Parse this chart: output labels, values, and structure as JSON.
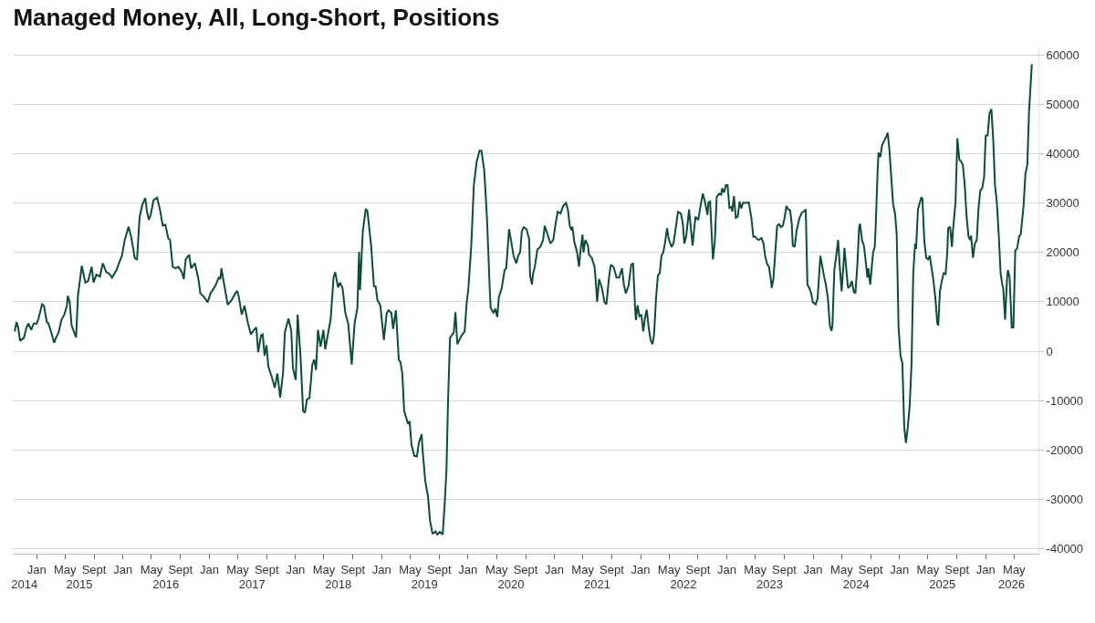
{
  "chart_data": {
    "type": "line",
    "title": "Managed Money, All, Long-Short, Positions",
    "x": [
      "2014-09-30",
      "2014-10-08",
      "2014-10-15",
      "2014-10-23",
      "2014-11-08",
      "2014-11-19",
      "2014-11-27",
      "2014-12-09",
      "2014-12-20",
      "2015-01-01",
      "2015-01-09",
      "2015-01-24",
      "2015-02-01",
      "2015-02-13",
      "2015-02-20",
      "2015-03-04",
      "2015-03-16",
      "2015-03-24",
      "2015-04-04",
      "2015-04-16",
      "2015-04-28",
      "2015-05-09",
      "2015-05-13",
      "2015-05-21",
      "2015-05-29",
      "2015-06-17",
      "2015-06-25",
      "2015-07-07",
      "2015-07-11",
      "2015-07-26",
      "2015-08-07",
      "2015-08-22",
      "2015-08-30",
      "2015-09-11",
      "2015-09-26",
      "2015-10-08",
      "2015-10-23",
      "2015-11-04",
      "2015-11-16",
      "2015-12-05",
      "2015-12-17",
      "2015-12-28",
      "2016-01-09",
      "2016-01-25",
      "2016-02-05",
      "2016-02-21",
      "2016-03-01",
      "2016-03-12",
      "2016-03-24",
      "2016-04-05",
      "2016-04-12",
      "2016-04-20",
      "2016-04-28",
      "2016-05-10",
      "2016-05-25",
      "2016-06-06",
      "2016-06-18",
      "2016-06-29",
      "2016-07-11",
      "2016-07-19",
      "2016-07-30",
      "2016-08-11",
      "2016-08-23",
      "2016-09-07",
      "2016-09-15",
      "2016-09-23",
      "2016-10-08",
      "2016-10-16",
      "2016-11-01",
      "2016-11-16",
      "2016-11-24",
      "2016-12-09",
      "2016-12-25",
      "2017-01-06",
      "2017-01-25",
      "2017-02-10",
      "2017-02-17",
      "2017-02-21",
      "2017-03-05",
      "2017-03-20",
      "2017-04-05",
      "2017-04-21",
      "2017-04-29",
      "2017-05-06",
      "2017-05-18",
      "2017-05-30",
      "2017-06-14",
      "2017-06-26",
      "2017-07-07",
      "2017-07-19",
      "2017-07-27",
      "2017-08-08",
      "2017-08-15",
      "2017-08-23",
      "2017-08-31",
      "2017-09-08",
      "2017-09-23",
      "2017-10-05",
      "2017-10-16",
      "2017-10-28",
      "2017-11-09",
      "2017-11-17",
      "2017-12-02",
      "2017-12-14",
      "2017-12-21",
      "2018-01-02",
      "2018-01-10",
      "2018-01-22",
      "2018-02-02",
      "2018-02-10",
      "2018-02-18",
      "2018-03-01",
      "2018-03-13",
      "2018-03-21",
      "2018-03-29",
      "2018-04-06",
      "2018-04-17",
      "2018-04-29",
      "2018-05-07",
      "2018-05-18",
      "2018-05-30",
      "2018-06-11",
      "2018-06-18",
      "2018-06-30",
      "2018-07-08",
      "2018-07-19",
      "2018-07-31",
      "2018-08-12",
      "2018-08-27",
      "2018-09-08",
      "2018-09-20",
      "2018-09-27",
      "2018-10-01",
      "2018-10-13",
      "2018-10-25",
      "2018-11-01",
      "2018-11-17",
      "2018-11-29",
      "2018-12-06",
      "2018-12-14",
      "2018-12-26",
      "2019-01-10",
      "2019-01-22",
      "2019-01-30",
      "2019-02-11",
      "2019-02-18",
      "2019-03-02",
      "2019-03-14",
      "2019-03-21",
      "2019-03-29",
      "2019-04-06",
      "2019-04-22",
      "2019-04-29",
      "2019-05-07",
      "2019-05-19",
      "2019-05-30",
      "2019-06-07",
      "2019-06-19",
      "2019-06-23",
      "2019-07-04",
      "2019-07-16",
      "2019-07-24",
      "2019-08-04",
      "2019-08-16",
      "2019-08-24",
      "2019-09-04",
      "2019-09-16",
      "2019-09-24",
      "2019-10-02",
      "2019-10-09",
      "2019-10-17",
      "2019-11-02",
      "2019-11-09",
      "2019-11-17",
      "2019-12-03",
      "2019-12-18",
      "2019-12-26",
      "2020-01-03",
      "2020-01-15",
      "2020-01-26",
      "2020-02-07",
      "2020-02-19",
      "2020-02-27",
      "2020-03-10",
      "2020-03-22",
      "2020-04-02",
      "2020-04-06",
      "2020-04-18",
      "2020-04-26",
      "2020-05-04",
      "2020-05-11",
      "2020-05-23",
      "2020-06-04",
      "2020-06-11",
      "2020-06-23",
      "2020-07-01",
      "2020-07-12",
      "2020-07-24",
      "2020-08-01",
      "2020-08-09",
      "2020-08-16",
      "2020-08-24",
      "2020-09-05",
      "2020-09-16",
      "2020-09-20",
      "2020-09-28",
      "2020-10-02",
      "2020-10-10",
      "2020-10-21",
      "2020-11-02",
      "2020-11-14",
      "2020-11-21",
      "2020-12-03",
      "2020-12-15",
      "2020-12-27",
      "2021-01-07",
      "2021-01-15",
      "2021-01-27",
      "2021-02-07",
      "2021-02-19",
      "2021-02-27",
      "2021-03-07",
      "2021-03-14",
      "2021-03-18",
      "2021-03-26",
      "2021-04-07",
      "2021-04-15",
      "2021-04-22",
      "2021-04-30",
      "2021-05-04",
      "2021-05-12",
      "2021-05-23",
      "2021-05-27",
      "2021-06-08",
      "2021-06-20",
      "2021-06-27",
      "2021-07-01",
      "2021-07-09",
      "2021-07-21",
      "2021-08-01",
      "2021-08-09",
      "2021-08-21",
      "2021-08-28",
      "2021-09-09",
      "2021-09-21",
      "2021-10-02",
      "2021-10-14",
      "2021-10-22",
      "2021-10-30",
      "2021-11-11",
      "2021-11-22",
      "2021-11-30",
      "2021-12-08",
      "2021-12-12",
      "2021-12-19",
      "2021-12-27",
      "2022-01-04",
      "2022-01-12",
      "2022-01-19",
      "2022-01-27",
      "2022-02-04",
      "2022-02-12",
      "2022-02-20",
      "2022-02-27",
      "2022-03-07",
      "2022-03-15",
      "2022-03-23",
      "2022-03-30",
      "2022-04-07",
      "2022-04-15",
      "2022-04-23",
      "2022-04-30",
      "2022-05-12",
      "2022-05-20",
      "2022-05-31",
      "2022-06-08",
      "2022-06-20",
      "2022-06-28",
      "2022-07-05",
      "2022-07-13",
      "2022-07-25",
      "2022-08-02",
      "2022-08-09",
      "2022-08-21",
      "2022-09-02",
      "2022-09-09",
      "2022-09-21",
      "2022-09-29",
      "2022-10-11",
      "2022-10-15",
      "2022-10-22",
      "2022-11-03",
      "2022-11-11",
      "2022-11-19",
      "2022-11-30",
      "2022-12-08",
      "2022-12-12",
      "2022-12-20",
      "2022-12-28",
      "2023-01-04",
      "2023-01-12",
      "2023-01-20",
      "2023-01-24",
      "2023-01-31",
      "2023-02-08",
      "2023-02-16",
      "2023-02-24",
      "2023-03-03",
      "2023-03-11",
      "2023-03-23",
      "2023-04-04",
      "2023-04-15",
      "2023-04-23",
      "2023-05-01",
      "2023-05-09",
      "2023-05-16",
      "2023-05-28",
      "2023-06-05",
      "2023-06-12",
      "2023-06-20",
      "2023-06-28",
      "2023-07-06",
      "2023-07-10",
      "2023-07-17",
      "2023-07-25",
      "2023-08-02",
      "2023-08-10",
      "2023-08-18",
      "2023-08-26",
      "2023-09-02",
      "2023-09-10",
      "2023-09-18",
      "2023-09-26",
      "2023-10-03",
      "2023-10-07",
      "2023-10-15",
      "2023-10-23",
      "2023-11-04",
      "2023-11-15",
      "2023-11-23",
      "2023-12-01",
      "2023-12-08",
      "2023-12-16",
      "2023-12-24",
      "2023-12-31",
      "2024-01-12",
      "2024-01-20",
      "2024-02-01",
      "2024-02-09",
      "2024-02-16",
      "2024-02-24",
      "2024-03-04",
      "2024-03-12",
      "2024-03-19",
      "2024-03-23",
      "2024-03-31",
      "2024-04-08",
      "2024-04-16",
      "2024-04-23",
      "2024-05-01",
      "2024-05-09",
      "2024-05-13",
      "2024-05-21",
      "2024-05-28",
      "2024-06-05",
      "2024-06-13",
      "2024-06-21",
      "2024-06-28",
      "2024-07-06",
      "2024-07-14",
      "2024-07-18",
      "2024-07-26",
      "2024-08-03",
      "2024-08-10",
      "2024-08-18",
      "2024-08-22",
      "2024-08-30",
      "2024-09-11",
      "2024-09-18",
      "2024-09-22",
      "2024-09-30",
      "2024-10-04",
      "2024-10-12",
      "2024-10-19",
      "2024-10-27",
      "2024-11-04",
      "2024-11-12",
      "2024-11-19",
      "2024-11-27",
      "2024-12-05",
      "2024-12-13",
      "2024-12-20",
      "2024-12-28",
      "2025-01-05",
      "2025-01-13",
      "2025-01-21",
      "2025-01-28",
      "2025-02-05",
      "2025-02-13",
      "2025-02-21",
      "2025-02-28",
      "2025-03-08",
      "2025-03-12",
      "2025-03-20",
      "2025-03-28",
      "2025-04-04",
      "2025-04-08",
      "2025-04-16",
      "2025-04-24",
      "2025-05-02",
      "2025-05-09",
      "2025-05-17",
      "2025-05-25",
      "2025-06-02",
      "2025-06-10",
      "2025-06-14",
      "2025-06-21",
      "2025-06-29",
      "2025-07-07",
      "2025-07-15",
      "2025-07-22",
      "2025-07-26",
      "2025-08-03",
      "2025-08-11",
      "2025-08-15",
      "2025-08-26",
      "2025-09-03",
      "2025-09-11",
      "2025-09-19",
      "2025-09-26",
      "2025-10-04",
      "2025-10-12",
      "2025-10-20",
      "2025-10-27",
      "2025-10-31",
      "2025-11-08",
      "2025-11-16",
      "2025-11-24",
      "2025-12-01",
      "2025-12-09",
      "2025-12-17",
      "2025-12-25",
      "2026-01-01",
      "2026-01-09",
      "2026-01-17",
      "2026-01-25",
      "2026-02-02",
      "2026-02-09",
      "2026-02-17",
      "2026-02-25",
      "2026-03-05",
      "2026-03-12",
      "2026-03-16",
      "2026-03-24",
      "2026-04-01",
      "2026-04-05",
      "2026-04-12",
      "2026-04-21",
      "2026-04-28",
      "2026-05-06",
      "2026-05-14",
      "2026-05-22",
      "2026-05-29",
      "2026-06-10",
      "2026-06-18",
      "2026-06-26",
      "2026-07-03",
      "2026-07-15"
    ],
    "series": [
      {
        "color": "#0b4d3a",
        "values": [
          4000,
          5900,
          4800,
          2100,
          2700,
          4800,
          5600,
          4300,
          5600,
          5600,
          6600,
          9500,
          9200,
          5900,
          5600,
          3800,
          1700,
          2700,
          3800,
          6300,
          7400,
          9200,
          11200,
          9900,
          5200,
          2800,
          11300,
          15700,
          17300,
          13900,
          14200,
          17100,
          13900,
          15500,
          15100,
          17800,
          16000,
          15700,
          14900,
          16400,
          18000,
          19300,
          22500,
          25200,
          23200,
          18800,
          18600,
          27200,
          29700,
          31000,
          28300,
          26600,
          27600,
          30600,
          31100,
          28700,
          25400,
          25600,
          22900,
          22500,
          17100,
          16800,
          17100,
          16000,
          14600,
          18600,
          19500,
          16800,
          17800,
          14600,
          11700,
          11000,
          9900,
          11700,
          13100,
          14900,
          14600,
          16800,
          13500,
          9400,
          10300,
          11700,
          12200,
          11000,
          7400,
          9200,
          5600,
          3400,
          4200,
          4800,
          -200,
          3200,
          3400,
          -900,
          1200,
          -3100,
          -5300,
          -7400,
          -4500,
          -9400,
          -4500,
          3800,
          6600,
          4100,
          -3500,
          -5800,
          7400,
          -900,
          -12100,
          -12500,
          -9800,
          -9500,
          -2700,
          -1700,
          -3800,
          4300,
          900,
          4300,
          400,
          3400,
          6600,
          14900,
          16000,
          12900,
          13900,
          12800,
          7700,
          5600,
          -2700,
          5600,
          8800,
          20100,
          12400,
          24300,
          28700,
          28500,
          21400,
          13100,
          13100,
          10300,
          9300,
          2300,
          7700,
          8300,
          7700,
          4500,
          8300,
          -1700,
          -2200,
          -4500,
          -12100,
          -14700,
          -14200,
          -19000,
          -21200,
          -21300,
          -18600,
          -16800,
          -20100,
          -26200,
          -29500,
          -34200,
          -37000,
          -36500,
          -37100,
          -36600,
          -37100,
          -31300,
          -24000,
          -9600,
          2700,
          3800,
          7900,
          1400,
          3000,
          4000,
          9500,
          12800,
          21400,
          33700,
          38400,
          40600,
          40600,
          36600,
          26500,
          12800,
          8800,
          7700,
          8600,
          6900,
          11000,
          12800,
          16400,
          16800,
          24700,
          22500,
          19300,
          17800,
          19400,
          20000,
          24300,
          25100,
          24700,
          22700,
          15300,
          13500,
          15500,
          17100,
          20600,
          21100,
          22500,
          25400,
          23600,
          21800,
          22500,
          26100,
          28200,
          27900,
          29400,
          30000,
          28700,
          25400,
          24500,
          25200,
          22200,
          20000,
          17100,
          20600,
          23600,
          20000,
          22500,
          21400,
          19600,
          18900,
          17100,
          12800,
          10000,
          14600,
          12800,
          9900,
          9500,
          15300,
          17500,
          17000,
          14900,
          14900,
          16800,
          13500,
          11700,
          13300,
          17500,
          17800,
          9200,
          6300,
          9300,
          7100,
          7400,
          4000,
          6600,
          8400,
          4800,
          2300,
          1400,
          3400,
          10600,
          15300,
          15800,
          19300,
          20000,
          22200,
          24900,
          22700,
          21100,
          21800,
          25400,
          28200,
          27900,
          26100,
          21800,
          23300,
          28700,
          24700,
          21400,
          27200,
          26600,
          28700,
          31900,
          30500,
          27600,
          30100,
          30300,
          18600,
          22200,
          31200,
          31900,
          31700,
          33000,
          32100,
          33600,
          33600,
          29000,
          29200,
          28300,
          31400,
          27000,
          27200,
          30300,
          28900,
          30100,
          30000,
          30100,
          26900,
          23200,
          23200,
          22700,
          22500,
          22900,
          21800,
          19300,
          17700,
          17100,
          14600,
          12800,
          14600,
          20000,
          25400,
          25700,
          25100,
          25400,
          26900,
          29400,
          28700,
          28500,
          25700,
          21400,
          21100,
          24300,
          26900,
          28100,
          28300,
          28700,
          13500,
          12800,
          11700,
          9900,
          9500,
          10600,
          19300,
          17100,
          15300,
          13500,
          10600,
          5200,
          4100,
          5200,
          16400,
          19300,
          22500,
          17100,
          12100,
          17800,
          20900,
          16400,
          12800,
          13100,
          14200,
          12100,
          11700,
          17100,
          25100,
          25800,
          22500,
          21400,
          18600,
          14900,
          16800,
          13500,
          20000,
          21100,
          25100,
          36200,
          40200,
          39300,
          41700,
          42500,
          43200,
          44200,
          40900,
          35200,
          29700,
          27900,
          23600,
          4800,
          -900,
          -2400,
          -15400,
          -18600,
          -15400,
          -11000,
          -2400,
          15700,
          21800,
          20700,
          28700,
          30100,
          31200,
          30800,
          22200,
          18900,
          18600,
          19300,
          16800,
          14200,
          10600,
          5600,
          5200,
          12100,
          14200,
          15800,
          15600,
          20000,
          24900,
          25200,
          21100,
          24300,
          30100,
          43100,
          38800,
          38400,
          37700,
          33700,
          27200,
          23200,
          22500,
          23400,
          18900,
          21800,
          22500,
          28700,
          32600,
          33000,
          35200,
          43700,
          43700,
          48200,
          49000,
          42400,
          33700,
          30100,
          23600,
          15700,
          13500,
          12800,
          6400,
          14600,
          16400,
          14900,
          4800,
          4800,
          20400,
          20800,
          23200,
          23600,
          29400,
          35900,
          37700,
          48200,
          58100
        ]
      }
    ],
    "xlim": [
      "2014-09-22",
      "2026-08-12"
    ],
    "xticks": [
      {
        "value": "2015-01-01",
        "label": "Jan"
      },
      {
        "value": "2015-05-01",
        "label": "May"
      },
      {
        "value": "2015-09-01",
        "label": "Sept"
      },
      {
        "value": "2016-01-01",
        "label": "Jan"
      },
      {
        "value": "2016-05-01",
        "label": "May"
      },
      {
        "value": "2016-09-01",
        "label": "Sept"
      },
      {
        "value": "2017-01-01",
        "label": "Jan"
      },
      {
        "value": "2017-05-01",
        "label": "May"
      },
      {
        "value": "2017-09-01",
        "label": "Sept"
      },
      {
        "value": "2018-01-01",
        "label": "Jan"
      },
      {
        "value": "2018-05-01",
        "label": "May"
      },
      {
        "value": "2018-09-01",
        "label": "Sept"
      },
      {
        "value": "2019-01-01",
        "label": "Jan"
      },
      {
        "value": "2019-05-01",
        "label": "May"
      },
      {
        "value": "2019-09-01",
        "label": "Sept"
      },
      {
        "value": "2020-01-01",
        "label": "Jan"
      },
      {
        "value": "2020-05-01",
        "label": "May"
      },
      {
        "value": "2020-09-01",
        "label": "Sept"
      },
      {
        "value": "2021-01-01",
        "label": "Jan"
      },
      {
        "value": "2021-05-01",
        "label": "May"
      },
      {
        "value": "2021-09-01",
        "label": "Sept"
      },
      {
        "value": "2022-01-01",
        "label": "Jan"
      },
      {
        "value": "2022-05-01",
        "label": "May"
      },
      {
        "value": "2022-09-01",
        "label": "Sept"
      },
      {
        "value": "2023-01-01",
        "label": "Jan"
      },
      {
        "value": "2023-05-01",
        "label": "May"
      },
      {
        "value": "2023-09-01",
        "label": "Sept"
      },
      {
        "value": "2024-01-01",
        "label": "Jan"
      },
      {
        "value": "2024-05-01",
        "label": "May"
      },
      {
        "value": "2024-09-01",
        "label": "Sept"
      },
      {
        "value": "2025-01-01",
        "label": "Jan"
      },
      {
        "value": "2025-05-01",
        "label": "May"
      },
      {
        "value": "2025-09-01",
        "label": "Sept"
      },
      {
        "value": "2026-01-01",
        "label": "Jan"
      },
      {
        "value": "2026-05-01",
        "label": "May"
      }
    ],
    "x2lim": [
      "2014-09-22",
      "2026-08-12"
    ],
    "x2ticks": [
      {
        "value": "2014-11-10",
        "label": "2014"
      },
      {
        "value": "2015-07-01",
        "label": "2015"
      },
      {
        "value": "2016-07-01",
        "label": "2016"
      },
      {
        "value": "2017-07-01",
        "label": "2017"
      },
      {
        "value": "2018-07-01",
        "label": "2018"
      },
      {
        "value": "2019-07-01",
        "label": "2019"
      },
      {
        "value": "2020-07-01",
        "label": "2020"
      },
      {
        "value": "2021-07-01",
        "label": "2021"
      },
      {
        "value": "2022-07-01",
        "label": "2022"
      },
      {
        "value": "2023-07-01",
        "label": "2023"
      },
      {
        "value": "2024-07-01",
        "label": "2024"
      },
      {
        "value": "2025-07-01",
        "label": "2025"
      },
      {
        "value": "2026-04-20",
        "label": "2026"
      }
    ],
    "ylim": [
      -41000,
      61500
    ],
    "yticks": [
      -40000,
      -30000,
      -20000,
      -10000,
      0,
      10000,
      20000,
      30000,
      40000,
      50000,
      60000
    ],
    "grid": "y",
    "marker": "none",
    "line_style": "solid"
  }
}
